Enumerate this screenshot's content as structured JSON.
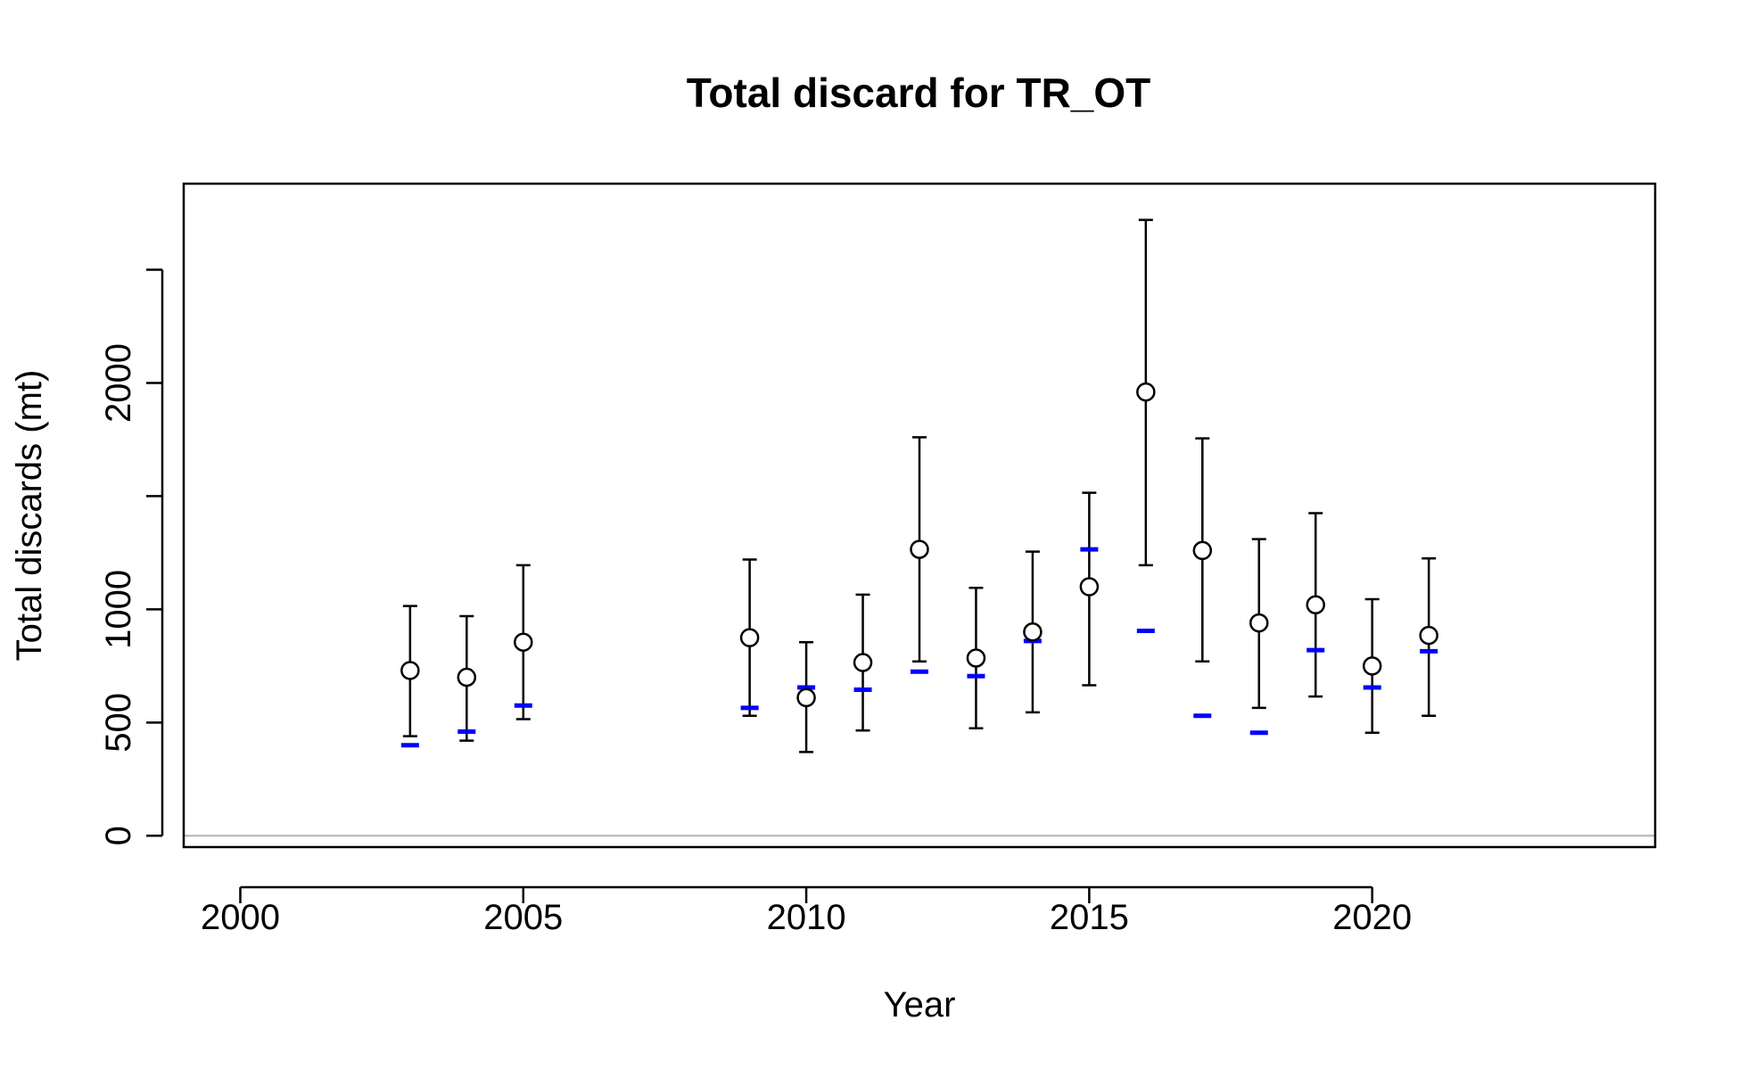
{
  "chart_data": {
    "type": "scatter",
    "title": "Total discard for TR_OT",
    "xlabel": "Year",
    "ylabel": "Total discards (mt)",
    "xlim": [
      1999,
      2025
    ],
    "ylim": [
      -50,
      2880
    ],
    "xticks": [
      2000,
      2005,
      2010,
      2015,
      2020
    ],
    "yticks": [
      0,
      500,
      1000,
      1500,
      2000,
      2500
    ],
    "ytick_labels": [
      "0",
      "500",
      "1000",
      "",
      "2000",
      ""
    ],
    "reference_line": {
      "y": 0,
      "color": "#bebebe"
    },
    "grid": false,
    "legend": "none",
    "series": [
      {
        "kind": "point-with-error-bar",
        "marker": "open-circle",
        "color": "#000000",
        "x": [
          2003,
          2004,
          2005,
          2009,
          2010,
          2011,
          2012,
          2013,
          2014,
          2015,
          2016,
          2017,
          2018,
          2019,
          2020,
          2021
        ],
        "y": [
          730,
          700,
          855,
          875,
          610,
          765,
          1265,
          785,
          900,
          1100,
          1960,
          1260,
          940,
          1020,
          750,
          885
        ],
        "lower": [
          440,
          420,
          515,
          530,
          370,
          465,
          770,
          475,
          545,
          665,
          1195,
          770,
          565,
          615,
          455,
          530
        ],
        "upper": [
          1015,
          970,
          1195,
          1220,
          855,
          1065,
          1760,
          1095,
          1255,
          1515,
          2720,
          1755,
          1310,
          1425,
          1045,
          1225
        ]
      },
      {
        "kind": "dash",
        "marker": "horizontal-dash",
        "color": "#0000ff",
        "x": [
          2003,
          2004,
          2005,
          2009,
          2010,
          2011,
          2012,
          2013,
          2014,
          2015,
          2016,
          2017,
          2018,
          2019,
          2020,
          2021
        ],
        "y": [
          400,
          460,
          575,
          565,
          655,
          645,
          725,
          705,
          860,
          1265,
          905,
          530,
          455,
          820,
          655,
          815
        ]
      }
    ]
  }
}
